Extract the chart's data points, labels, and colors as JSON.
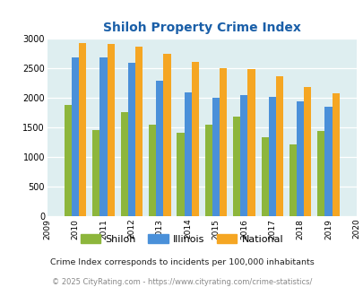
{
  "title": "Shiloh Property Crime Index",
  "years": [
    2009,
    2010,
    2011,
    2012,
    2013,
    2014,
    2015,
    2016,
    2017,
    2018,
    2019,
    2020
  ],
  "bar_years": [
    2010,
    2011,
    2012,
    2013,
    2014,
    2015,
    2016,
    2017,
    2018,
    2019
  ],
  "shiloh": [
    1875,
    1450,
    1750,
    1550,
    1400,
    1550,
    1675,
    1325,
    1210,
    1440
  ],
  "illinois": [
    2675,
    2675,
    2590,
    2280,
    2090,
    2000,
    2050,
    2020,
    1940,
    1850
  ],
  "national": [
    2920,
    2900,
    2860,
    2740,
    2610,
    2500,
    2480,
    2360,
    2180,
    2080
  ],
  "shiloh_color": "#8db63c",
  "illinois_color": "#4a90d9",
  "national_color": "#f5a623",
  "background_color": "#deeef0",
  "ylim": [
    0,
    3000
  ],
  "yticks": [
    0,
    500,
    1000,
    1500,
    2000,
    2500,
    3000
  ],
  "legend_labels": [
    "Shiloh",
    "Illinois",
    "National"
  ],
  "footnote1": "Crime Index corresponds to incidents per 100,000 inhabitants",
  "footnote2": "© 2025 CityRating.com - https://www.cityrating.com/crime-statistics/",
  "title_color": "#1a5fa8",
  "footnote1_color": "#222222",
  "footnote2_color": "#888888"
}
